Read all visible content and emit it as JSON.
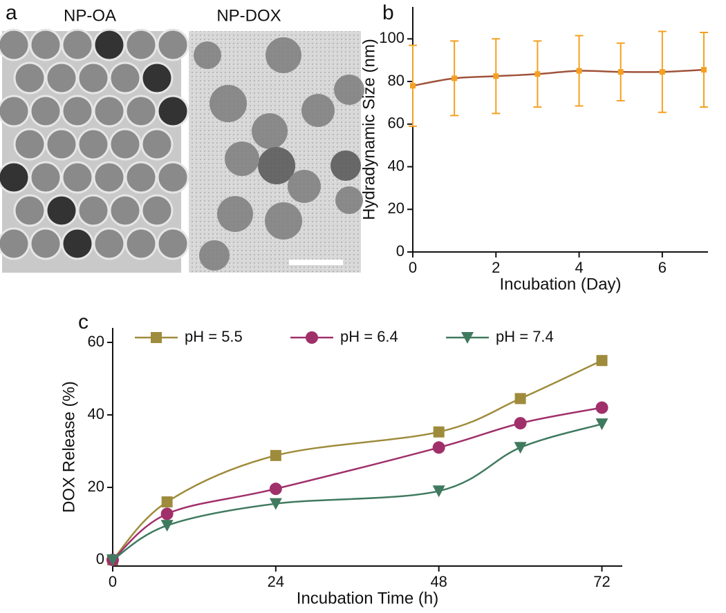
{
  "images": {
    "label": "a",
    "titles": [
      "NP-OA",
      "NP-DOX"
    ]
  },
  "chart_data": [
    {
      "type": "line",
      "label": "b",
      "x_label": "Incubation (Day)",
      "y_label": "Hydradynamic Size (nm)",
      "x": [
        0,
        1,
        2,
        3,
        4,
        5,
        6,
        7
      ],
      "series": [
        {
          "color": "#f5a020",
          "line_color": "#a0523a",
          "marker": "square",
          "values": [
            78,
            81.5,
            82.5,
            83.5,
            85,
            84.5,
            84.5,
            85.5
          ],
          "errors": [
            19,
            17.5,
            17.5,
            15.5,
            16.5,
            13.5,
            19,
            17.5
          ]
        }
      ],
      "xlim": [
        0,
        7.1
      ],
      "ylim": [
        0,
        115
      ],
      "xticks": [
        0,
        2,
        4,
        6
      ],
      "yticks": [
        0,
        20,
        40,
        60,
        80,
        100
      ]
    },
    {
      "type": "line",
      "label": "c",
      "x_label": "Incubation Time (h)",
      "y_label": "DOX Release (%)",
      "x": [
        0,
        8,
        24,
        48,
        60,
        72
      ],
      "series": [
        {
          "name": "pH = 5.5",
          "color": "#9e8b3b",
          "marker": "square",
          "values": [
            0,
            16,
            28.8,
            35.3,
            44.5,
            55
          ]
        },
        {
          "name": "pH = 6.4",
          "color": "#a0306a",
          "marker": "circle",
          "values": [
            0,
            12.7,
            19.6,
            31,
            37.7,
            42
          ]
        },
        {
          "name": "pH = 7.4",
          "color": "#3f7a5f",
          "marker": "triangle-down",
          "values": [
            0,
            9.5,
            15.5,
            19,
            31,
            37.5
          ]
        }
      ],
      "xlim": [
        0,
        75
      ],
      "ylim": [
        -1.7,
        64
      ],
      "xticks": [
        0,
        24,
        48,
        72
      ],
      "yticks": [
        0,
        20,
        40,
        60
      ],
      "legend": "top"
    }
  ]
}
